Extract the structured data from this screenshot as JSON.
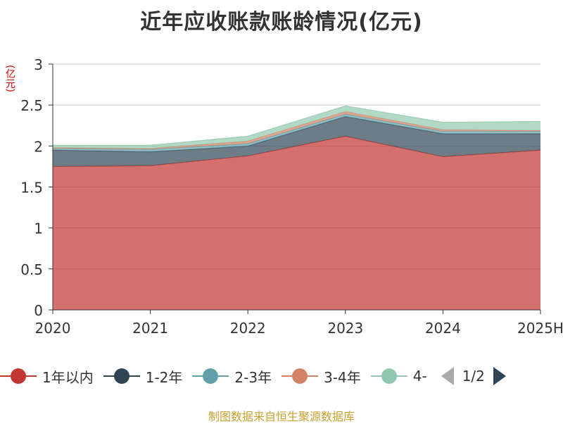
{
  "title": "近年应收账款账龄情况(亿元)",
  "y_unit": "(亿元)",
  "source": "制图数据来自恒生聚源数据库",
  "legend_page": "1/2",
  "chart_data": {
    "type": "area",
    "stacked": true,
    "categories": [
      "2020",
      "2021",
      "2022",
      "2023",
      "2024",
      "2025H"
    ],
    "ylim": [
      0,
      3
    ],
    "yticks": [
      "0",
      "0.5",
      "1",
      "1.5",
      "2",
      "2.5",
      "3"
    ],
    "grid": true,
    "legend_position": "bottom",
    "series": [
      {
        "name": "1年以内",
        "color": "#c23531",
        "values": [
          1.75,
          1.76,
          1.88,
          2.12,
          1.87,
          1.95
        ]
      },
      {
        "name": "1-2年",
        "color": "#2f4554",
        "values": [
          0.2,
          0.17,
          0.12,
          0.24,
          0.28,
          0.2
        ]
      },
      {
        "name": "2-3年",
        "color": "#61a0a8",
        "values": [
          0.02,
          0.03,
          0.03,
          0.03,
          0.03,
          0.03
        ]
      },
      {
        "name": "3-4年",
        "color": "#d48265",
        "values": [
          0.01,
          0.01,
          0.03,
          0.03,
          0.02,
          0.01
        ]
      },
      {
        "name": "4-",
        "color": "#91c7ae",
        "values": [
          0.03,
          0.04,
          0.06,
          0.07,
          0.09,
          0.11
        ]
      }
    ]
  }
}
